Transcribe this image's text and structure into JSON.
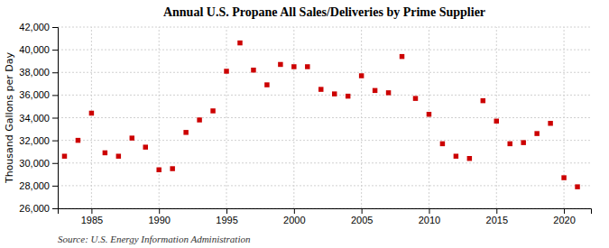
{
  "chart_data": {
    "type": "scatter",
    "title": "Annual U.S. Propane All Sales/Deliveries by Prime Supplier",
    "ylabel": "Thousand Gallons per Day",
    "source": "Source: U.S. Energy Information Administration",
    "x": [
      1983,
      1984,
      1985,
      1986,
      1987,
      1988,
      1989,
      1990,
      1991,
      1992,
      1993,
      1994,
      1995,
      1996,
      1997,
      1998,
      1999,
      2000,
      2001,
      2002,
      2003,
      2004,
      2005,
      2006,
      2007,
      2008,
      2009,
      2010,
      2011,
      2012,
      2013,
      2014,
      2015,
      2016,
      2017,
      2018,
      2019,
      2020,
      2021
    ],
    "values": [
      30600,
      32000,
      34400,
      30900,
      30600,
      32200,
      31400,
      29400,
      29500,
      32700,
      33800,
      34600,
      38100,
      40600,
      38200,
      36900,
      38700,
      38500,
      38500,
      36500,
      36100,
      35900,
      37700,
      36400,
      36200,
      39400,
      35700,
      34300,
      31700,
      30600,
      30400,
      35500,
      33700,
      31700,
      31800,
      32600,
      33500,
      28700,
      27900
    ],
    "color": "#cc0000",
    "marker": "square",
    "xlim": [
      1982.5,
      2022
    ],
    "xticks": [
      1985,
      1990,
      1995,
      2000,
      2005,
      2010,
      2015,
      2020
    ],
    "ylim": [
      26000,
      42000
    ],
    "yticks": [
      {
        "value": 26000,
        "label": "26,000"
      },
      {
        "value": 28000,
        "label": "28,000"
      },
      {
        "value": 30000,
        "label": "30,000"
      },
      {
        "value": 32000,
        "label": "32,000"
      },
      {
        "value": 34000,
        "label": "34,000"
      },
      {
        "value": 36000,
        "label": "36,000"
      },
      {
        "value": 38000,
        "label": "38,000"
      },
      {
        "value": 40000,
        "label": "40,000"
      },
      {
        "value": 42000,
        "label": "42,000"
      }
    ],
    "grid": true
  }
}
